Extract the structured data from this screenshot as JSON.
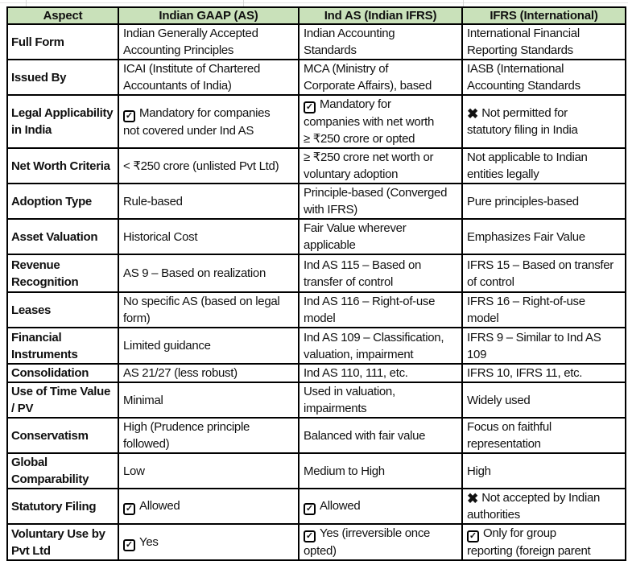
{
  "colors": {
    "header_bg": "#C9E1BA",
    "border": "#000000",
    "gridline": "#D8D8D8"
  },
  "icons": {
    "check_glyph": "✓",
    "x_glyph": "✖",
    "check_name": "checkbox-checked-icon",
    "x_name": "cross-icon"
  },
  "table": {
    "headers": [
      "Aspect",
      "Indian GAAP (AS)",
      "Ind AS (Indian IFRS)",
      "IFRS (International)"
    ],
    "rows": [
      {
        "label": "Full Form",
        "cells": [
          {
            "text": "Indian Generally Accepted\nAccounting Principles"
          },
          {
            "text": "Indian Accounting\nStandards"
          },
          {
            "text": "International Financial\nReporting Standards"
          }
        ]
      },
      {
        "label": "Issued By",
        "cells": [
          {
            "text": "ICAI (Institute of Chartered\nAccountants of India)"
          },
          {
            "text": "MCA (Ministry of\nCorporate Affairs), based"
          },
          {
            "text": "IASB (International\nAccounting Standards"
          }
        ]
      },
      {
        "label": "Legal Applicability\nin India",
        "cells": [
          {
            "icon": "check",
            "text": "Mandatory for companies\nnot covered under Ind AS"
          },
          {
            "icon": "check",
            "text": "Mandatory for\ncompanies with net worth\n≥ ₹250 crore or opted"
          },
          {
            "icon": "x",
            "text": "Not permitted for\nstatutory filing in India"
          }
        ]
      },
      {
        "label": "Net Worth Criteria",
        "cells": [
          {
            "text": "< ₹250 crore (unlisted Pvt Ltd)"
          },
          {
            "text": "≥ ₹250 crore net worth or\nvoluntary adoption"
          },
          {
            "text": "Not applicable to Indian\nentities legally"
          }
        ]
      },
      {
        "label": "Adoption Type",
        "cells": [
          {
            "text": "Rule-based"
          },
          {
            "text": "Principle-based (Converged\nwith IFRS)"
          },
          {
            "text": "Pure principles-based"
          }
        ]
      },
      {
        "label": "Asset Valuation",
        "cells": [
          {
            "text": "Historical Cost"
          },
          {
            "text": "Fair Value wherever\napplicable"
          },
          {
            "text": "Emphasizes Fair Value"
          }
        ]
      },
      {
        "label": "Revenue\nRecognition",
        "cells": [
          {
            "text": "AS 9 – Based on realization"
          },
          {
            "text": "Ind AS 115 – Based on\ntransfer of control"
          },
          {
            "text": "IFRS 15 – Based on transfer\nof control"
          }
        ]
      },
      {
        "label": "Leases",
        "cells": [
          {
            "text": "No specific AS (based on legal\nform)"
          },
          {
            "text": "Ind AS 116 – Right-of-use\nmodel"
          },
          {
            "text": "IFRS 16 – Right-of-use\nmodel"
          }
        ]
      },
      {
        "label": "Financial\nInstruments",
        "cells": [
          {
            "text": "Limited guidance"
          },
          {
            "text": "Ind AS 109 – Classification,\nvaluation, impairment"
          },
          {
            "text": "IFRS 9 – Similar to Ind AS\n109"
          }
        ]
      },
      {
        "label": "Consolidation",
        "cells": [
          {
            "text": "AS 21/27 (less robust)"
          },
          {
            "text": "Ind AS 110, 111, etc."
          },
          {
            "text": "IFRS 10, IFRS 11, etc."
          }
        ]
      },
      {
        "label": "Use of Time Value\n/ PV",
        "cells": [
          {
            "text": "Minimal"
          },
          {
            "text": "Used in valuation,\nimpairments"
          },
          {
            "text": "Widely used"
          }
        ]
      },
      {
        "label": "Conservatism",
        "cells": [
          {
            "text": "High (Prudence principle\nfollowed)"
          },
          {
            "text": "Balanced with fair value"
          },
          {
            "text": "Focus on faithful\nrepresentation"
          }
        ]
      },
      {
        "label": "Global\nComparability",
        "cells": [
          {
            "text": "Low"
          },
          {
            "text": "Medium to High"
          },
          {
            "text": "High"
          }
        ]
      },
      {
        "label": "Statutory Filing",
        "cells": [
          {
            "icon": "check",
            "text": "Allowed"
          },
          {
            "icon": "check",
            "text": "Allowed"
          },
          {
            "icon": "x",
            "text": "Not accepted by Indian\nauthorities"
          }
        ]
      },
      {
        "label": "Voluntary Use by\nPvt Ltd",
        "cells": [
          {
            "icon": "check",
            "text": "Yes"
          },
          {
            "icon": "check",
            "text": "Yes (irreversible once\nopted)"
          },
          {
            "icon": "check",
            "text": "Only for group\nreporting (foreign parent"
          }
        ]
      }
    ]
  }
}
